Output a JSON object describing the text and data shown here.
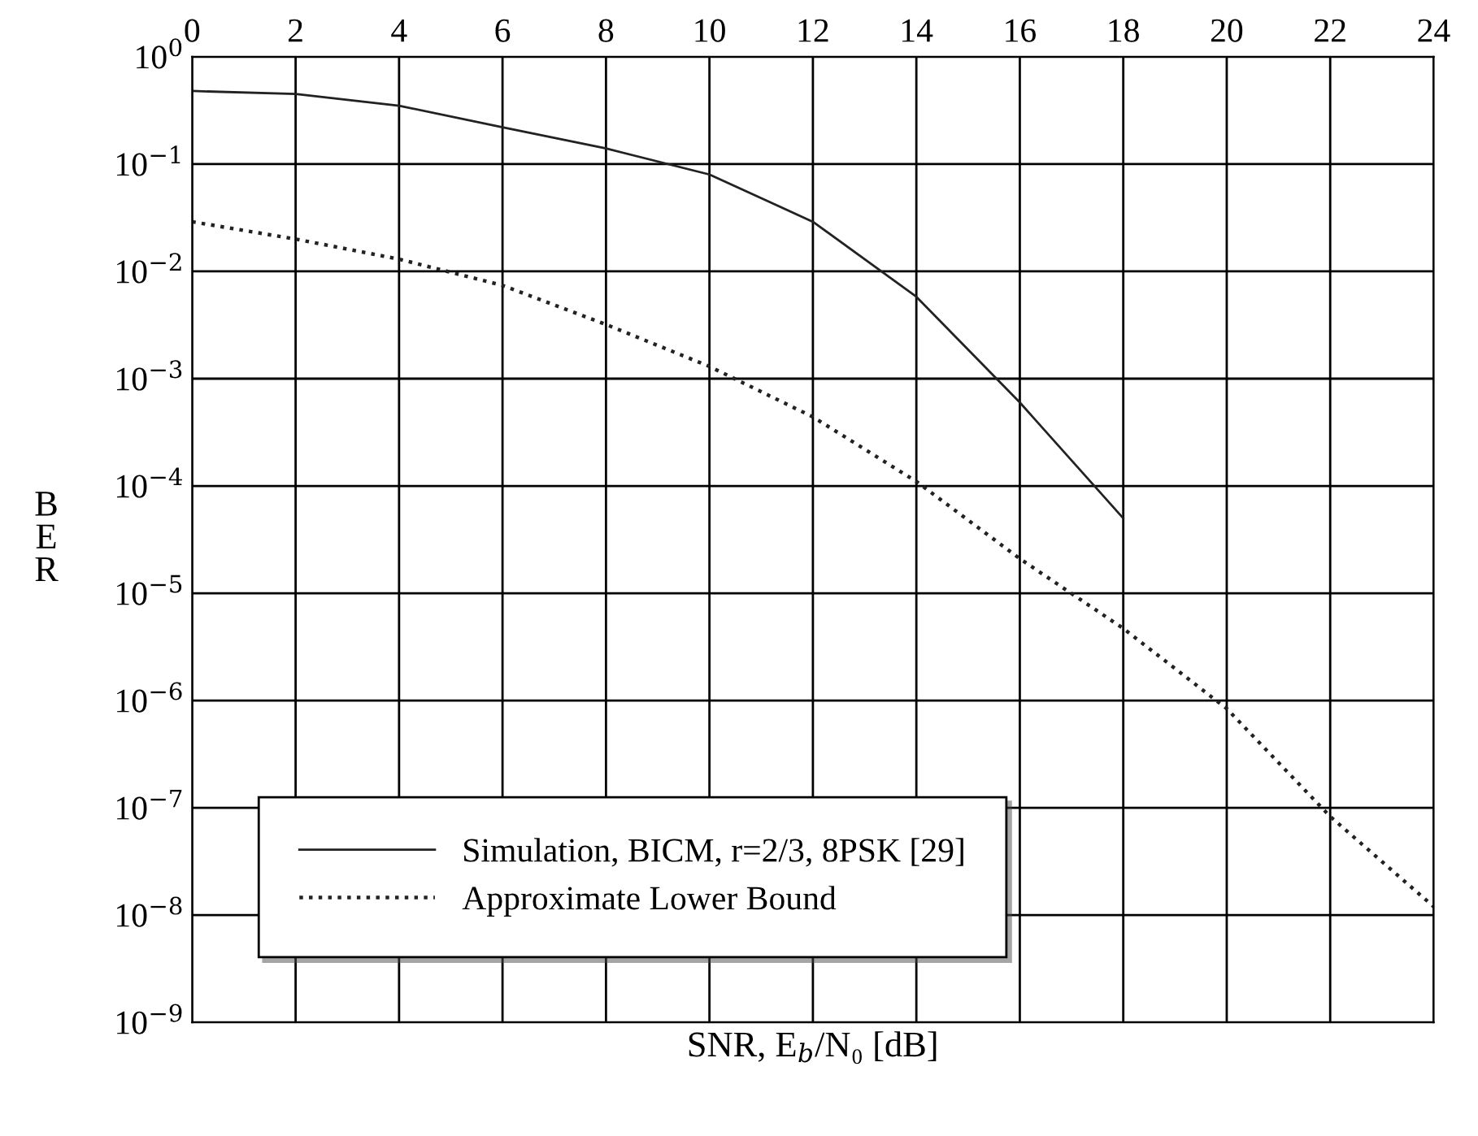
{
  "chart_data": {
    "type": "line",
    "xlabel": "SNR, E$_{b}$/N₀ [dB]",
    "ylabel": "BER",
    "log": "y",
    "grid": true,
    "legend": "bottom left",
    "xlim": [
      0,
      24
    ],
    "xticks": [
      0,
      2,
      4,
      6,
      8,
      10,
      12,
      14,
      16,
      18,
      20,
      22,
      24
    ],
    "ylim": [
      1e-09,
      1
    ],
    "yticks": [
      {
        "value": 1,
        "label": "10$^{0}$"
      },
      {
        "value": 0.1,
        "label": "10$^{−1}$"
      },
      {
        "value": 0.01,
        "label": "10$^{−2}$"
      },
      {
        "value": 0.001,
        "label": "10$^{−3}$"
      },
      {
        "value": 0.0001,
        "label": "10$^{−4}$"
      },
      {
        "value": 1e-05,
        "label": "10$^{−5}$"
      },
      {
        "value": 1e-06,
        "label": "10$^{−6}$"
      },
      {
        "value": 1e-07,
        "label": "10$^{−7}$"
      },
      {
        "value": 1e-08,
        "label": "10$^{−8}$"
      },
      {
        "value": 1e-09,
        "label": "10$^{−9}$"
      }
    ],
    "series": [
      {
        "name": "Simulation, BICM, r=2/3, 8PSK [29]",
        "color": "#222222",
        "line_style": "solid",
        "x": [
          0,
          2,
          4,
          6,
          8,
          10,
          12,
          14,
          16,
          18
        ],
        "values": [
          0.48,
          0.45,
          0.35,
          0.22,
          0.14,
          0.08,
          0.029,
          0.0058,
          0.0006,
          5e-05
        ]
      },
      {
        "name": "Approximate Lower Bound",
        "color": "#222222",
        "line_style": "dotted",
        "x": [
          0,
          2,
          4,
          6,
          8,
          10,
          12,
          14,
          16,
          18,
          20,
          22,
          24
        ],
        "values": [
          0.029,
          0.02,
          0.013,
          0.0074,
          0.0032,
          0.0013,
          0.00044,
          0.00011,
          2.1e-05,
          4.7e-06,
          8.4e-07,
          8.3e-08,
          1.2e-08
        ]
      }
    ]
  }
}
